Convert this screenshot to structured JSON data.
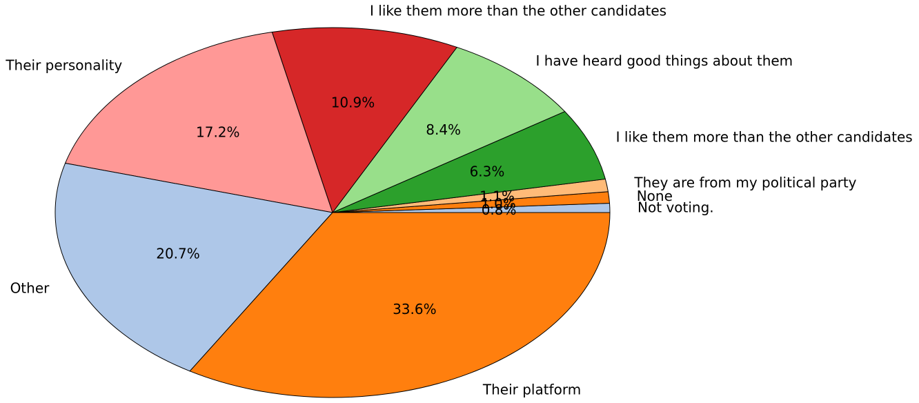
{
  "chart_data": {
    "type": "pie",
    "title": "",
    "slices": [
      {
        "label": "Not voting.",
        "value": 0.8,
        "pct_text": "0.8%",
        "color": "#aec7e8"
      },
      {
        "label": "None",
        "value": 1.0,
        "pct_text": "1.0%",
        "color": "#ff7f0e"
      },
      {
        "label": "They are from my political party",
        "value": 1.1,
        "pct_text": "1.1%",
        "color": "#ffbb78"
      },
      {
        "label": "I like them more than the other candidates",
        "value": 6.3,
        "pct_text": "6.3%",
        "color": "#2ca02c"
      },
      {
        "label": "I have heard good things about them",
        "value": 8.4,
        "pct_text": "8.4%",
        "color": "#98df8a"
      },
      {
        "label": "I like them more than the other candidates",
        "value": 10.9,
        "pct_text": "10.9%",
        "color": "#d62728"
      },
      {
        "label": "Their personality",
        "value": 17.2,
        "pct_text": "17.2%",
        "color": "#ff9896"
      },
      {
        "label": "Other",
        "value": 20.7,
        "pct_text": "20.7%",
        "color": "#aec7e8"
      },
      {
        "label": "Their platform",
        "value": 33.6,
        "pct_text": "33.6%",
        "color": "#ff7f0e"
      }
    ],
    "start_angle": "3 o'clock, counterclockwise",
    "edge_color": "#000000",
    "legend": "none"
  }
}
